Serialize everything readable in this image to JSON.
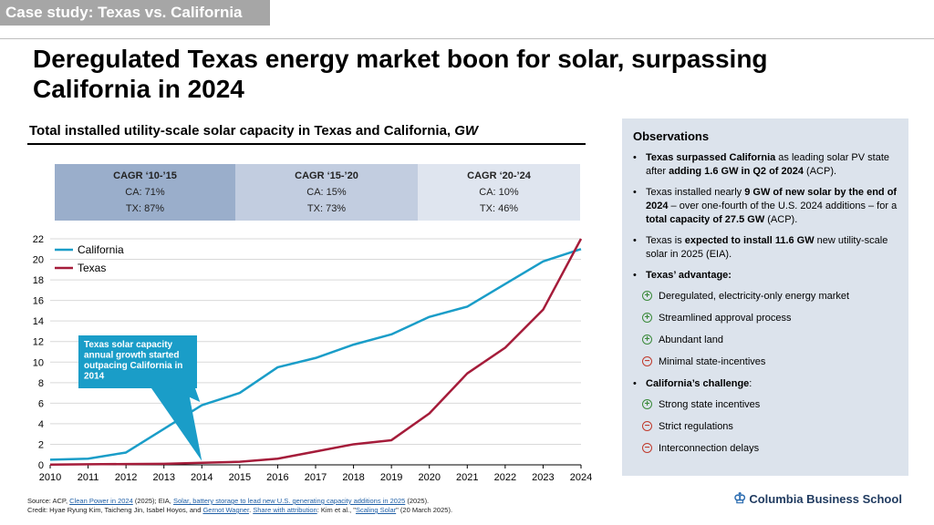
{
  "tag": "Case study: Texas vs. California",
  "title": "Deregulated Texas energy market boon for solar, surpassing California in 2024",
  "chart_heading": "Total installed utility-scale solar capacity in Texas and California,",
  "chart_heading_unit": "GW",
  "cagr": [
    {
      "header": "CAGR ‘10-’15",
      "ca": "CA: 71%",
      "tx": "TX: 87%"
    },
    {
      "header": "CAGR ‘15-’20",
      "ca": "CA: 15%",
      "tx": "TX: 73%"
    },
    {
      "header": "CAGR ‘20-’24",
      "ca": "CA: 10%",
      "tx": "TX: 46%"
    }
  ],
  "chart_data": {
    "type": "line",
    "x": [
      2010,
      2011,
      2012,
      2013,
      2014,
      2015,
      2016,
      2017,
      2018,
      2019,
      2020,
      2021,
      2022,
      2023,
      2024
    ],
    "series": [
      {
        "name": "California",
        "color": "#1a9dc8",
        "values": [
          0.5,
          0.6,
          1.2,
          3.5,
          5.8,
          7.0,
          9.5,
          10.4,
          11.7,
          12.7,
          14.4,
          15.4,
          17.6,
          19.8,
          21.0
        ]
      },
      {
        "name": "Texas",
        "color": "#a51c3a",
        "values": [
          0.02,
          0.05,
          0.08,
          0.1,
          0.2,
          0.3,
          0.6,
          1.3,
          2.0,
          2.4,
          5.0,
          8.9,
          11.4,
          15.1,
          22.0
        ]
      }
    ],
    "ylim": [
      0,
      22
    ],
    "yticks": [
      0,
      2,
      4,
      6,
      8,
      10,
      12,
      14,
      16,
      18,
      20,
      22
    ],
    "xlim": [
      2010,
      2024
    ],
    "gridlines": true,
    "legend": "top-left",
    "annotation": {
      "text": "Texas solar capacity annual growth started outpacing California in 2014",
      "x": 2014,
      "y": 0.2
    }
  },
  "observations": {
    "title": "Observations",
    "items": [
      {
        "parts": [
          {
            "t": "Texas surpassed California",
            "b": true
          },
          {
            "t": " as leading solar PV state after ",
            "b": false
          },
          {
            "t": "adding 1.6 GW in Q2 of 2024",
            "b": true
          },
          {
            "t": " (ACP).",
            "b": false
          }
        ]
      },
      {
        "parts": [
          {
            "t": "Texas installed nearly ",
            "b": false
          },
          {
            "t": "9 GW of new solar by the end of 2024",
            "b": true
          },
          {
            "t": " – over one-fourth of the U.S. 2024 additions – for a ",
            "b": false
          },
          {
            "t": "total capacity of 27.5 GW",
            "b": true
          },
          {
            "t": " (ACP).",
            "b": false
          }
        ]
      },
      {
        "parts": [
          {
            "t": "Texas is ",
            "b": false
          },
          {
            "t": "expected to install 11.6 GW",
            "b": true
          },
          {
            "t": " new utility-scale solar in 2025 (EIA).",
            "b": false
          }
        ]
      }
    ],
    "advantage_heading": "Texas’ advantage:",
    "advantages": [
      {
        "sign": "plus",
        "text": "Deregulated, electricity-only energy market"
      },
      {
        "sign": "plus",
        "text": "Streamlined approval process"
      },
      {
        "sign": "plus",
        "text": "Abundant land"
      },
      {
        "sign": "minus",
        "text": "Minimal state-incentives"
      }
    ],
    "challenge_heading": "California’s challenge",
    "challenge_colon": ":",
    "challenges": [
      {
        "sign": "plus",
        "text": "Strong state incentives"
      },
      {
        "sign": "minus",
        "text": "Strict regulations"
      },
      {
        "sign": "minus",
        "text": "Interconnection delays"
      }
    ]
  },
  "source": {
    "line1": [
      {
        "t": "Source: ACP, ",
        "l": false
      },
      {
        "t": "Clean Power in 2024",
        "l": true
      },
      {
        "t": " (2025); EIA, ",
        "l": false
      },
      {
        "t": "Solar, battery storage to lead new U.S. generating capacity additions in 2025",
        "l": true
      },
      {
        "t": " (2025).",
        "l": false
      }
    ],
    "line2": [
      {
        "t": "Credit: Hyae Ryung Kim, Taicheng Jin, Isabel Hoyos, and ",
        "l": false
      },
      {
        "t": "Gernot Wagner",
        "l": true
      },
      {
        "t": ". ",
        "l": false
      },
      {
        "t": "Share with attribution",
        "l": true
      },
      {
        "t": ": Kim et al., \"",
        "l": false
      },
      {
        "t": "Scaling Solar",
        "l": true
      },
      {
        "t": "\" (20 March 2025).",
        "l": false
      }
    ]
  },
  "logo": "Columbia Business School"
}
